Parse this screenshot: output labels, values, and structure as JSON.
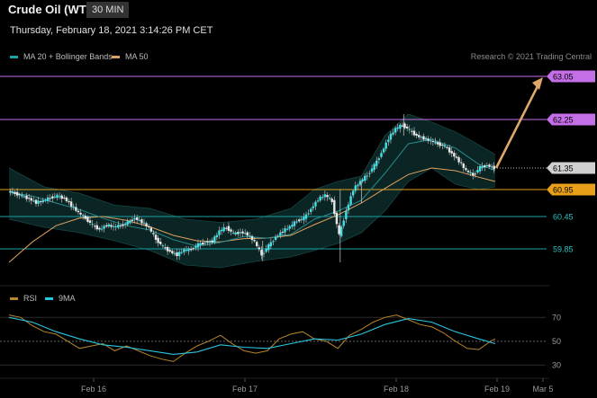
{
  "header": {
    "title": "Crude Oil (WTI)",
    "timeframe": "30 MIN"
  },
  "date_line": "Thursday, February 18, 2021 3:14:26 PM CET",
  "legend": {
    "ma20_label": "MA 20 + Bollinger Bands",
    "ma20_color": "#1aa3a3",
    "ma50_label": "MA 50",
    "ma50_color": "#e0a060"
  },
  "credit": "Research © 2021 Trading Central",
  "rsi_legend": {
    "rsi_label": "RSI",
    "rsi_color": "#b8862b",
    "ma_label": "9MA",
    "ma_color": "#29c6e0"
  },
  "chart_data": {
    "type": "line",
    "main": {
      "ylim": [
        59.5,
        63.3
      ],
      "levels": [
        {
          "value": 63.05,
          "label": "63.05",
          "color": "#c46ee8",
          "tag_fill": "#c46ee8",
          "tag_text": "#000"
        },
        {
          "value": 62.25,
          "label": "62.25",
          "color": "#c46ee8",
          "tag_fill": "#c46ee8",
          "tag_text": "#000"
        },
        {
          "value": 61.35,
          "label": "61.35",
          "color": "#bbbbbb",
          "tag_fill": "#d0d0d0",
          "tag_text": "#000",
          "dotted": true
        },
        {
          "value": 60.95,
          "label": "60.95",
          "color": "#e0a020",
          "tag_fill": "#e8a018",
          "tag_text": "#000"
        },
        {
          "value": 60.45,
          "label": "60.45",
          "color": "#1aa3a3",
          "tag_fill": "none",
          "tag_text": "#2ec0c0"
        },
        {
          "value": 59.85,
          "label": "59.85",
          "color": "#1aa3a3",
          "tag_fill": "none",
          "tag_text": "#2ec0c0"
        }
      ],
      "price": [
        [
          0,
          60.92
        ],
        [
          3,
          60.88
        ],
        [
          6,
          60.83
        ],
        [
          9,
          60.78
        ],
        [
          12,
          60.71
        ],
        [
          15,
          60.74
        ],
        [
          18,
          60.8
        ],
        [
          21,
          60.83
        ],
        [
          24,
          60.79
        ],
        [
          27,
          60.66
        ],
        [
          30,
          60.52
        ],
        [
          33,
          60.42
        ],
        [
          36,
          60.29
        ],
        [
          39,
          60.21
        ],
        [
          42,
          60.29
        ],
        [
          45,
          60.26
        ],
        [
          48,
          60.28
        ],
        [
          51,
          60.34
        ],
        [
          54,
          60.42
        ],
        [
          57,
          60.35
        ],
        [
          60,
          60.24
        ],
        [
          63,
          60.03
        ],
        [
          66,
          59.89
        ],
        [
          69,
          59.8
        ],
        [
          72,
          59.74
        ],
        [
          75,
          59.83
        ],
        [
          78,
          59.84
        ],
        [
          81,
          59.93
        ],
        [
          84,
          59.97
        ],
        [
          87,
          59.99
        ],
        [
          90,
          60.18
        ],
        [
          93,
          60.25
        ],
        [
          96,
          60.13
        ],
        [
          99,
          60.16
        ],
        [
          102,
          60.12
        ],
        [
          105,
          59.98
        ],
        [
          108,
          59.74
        ],
        [
          111,
          59.91
        ],
        [
          114,
          60.07
        ],
        [
          117,
          60.18
        ],
        [
          120,
          60.26
        ],
        [
          123,
          60.37
        ],
        [
          126,
          60.42
        ],
        [
          129,
          60.59
        ],
        [
          132,
          60.77
        ],
        [
          135,
          60.85
        ],
        [
          138,
          60.73
        ],
        [
          141,
          60.1
        ],
        [
          144,
          60.55
        ],
        [
          147,
          60.95
        ],
        [
          150,
          61.1
        ],
        [
          153,
          61.22
        ],
        [
          156,
          61.4
        ],
        [
          159,
          61.63
        ],
        [
          162,
          61.9
        ],
        [
          165,
          62.08
        ],
        [
          168,
          62.15
        ],
        [
          171,
          62.05
        ],
        [
          174,
          61.95
        ],
        [
          177,
          61.9
        ],
        [
          180,
          61.85
        ],
        [
          183,
          61.8
        ],
        [
          186,
          61.75
        ],
        [
          189,
          61.62
        ],
        [
          192,
          61.48
        ],
        [
          195,
          61.3
        ],
        [
          198,
          61.22
        ],
        [
          201,
          61.36
        ],
        [
          204,
          61.4
        ],
        [
          207,
          61.35
        ]
      ],
      "ma20": [
        [
          0,
          60.9
        ],
        [
          10,
          60.83
        ],
        [
          20,
          60.7
        ],
        [
          30,
          60.58
        ],
        [
          40,
          60.42
        ],
        [
          50,
          60.28
        ],
        [
          60,
          60.2
        ],
        [
          70,
          60.02
        ],
        [
          80,
          59.9
        ],
        [
          90,
          59.97
        ],
        [
          100,
          60.08
        ],
        [
          110,
          60.05
        ],
        [
          120,
          60.12
        ],
        [
          130,
          60.4
        ],
        [
          140,
          60.55
        ],
        [
          150,
          60.75
        ],
        [
          160,
          61.25
        ],
        [
          170,
          61.8
        ],
        [
          180,
          61.88
        ],
        [
          190,
          61.72
        ],
        [
          200,
          61.42
        ],
        [
          207,
          61.3
        ]
      ],
      "ma50": [
        [
          0,
          59.6
        ],
        [
          10,
          59.98
        ],
        [
          20,
          60.28
        ],
        [
          30,
          60.42
        ],
        [
          40,
          60.45
        ],
        [
          50,
          60.38
        ],
        [
          60,
          60.26
        ],
        [
          70,
          60.1
        ],
        [
          80,
          60.0
        ],
        [
          90,
          59.98
        ],
        [
          100,
          60.04
        ],
        [
          110,
          60.05
        ],
        [
          120,
          60.1
        ],
        [
          130,
          60.3
        ],
        [
          140,
          60.48
        ],
        [
          150,
          60.7
        ],
        [
          160,
          60.97
        ],
        [
          170,
          61.23
        ],
        [
          180,
          61.35
        ],
        [
          190,
          61.3
        ],
        [
          200,
          61.18
        ],
        [
          207,
          61.1
        ]
      ],
      "bands_upper": [
        [
          0,
          61.35
        ],
        [
          15,
          61.0
        ],
        [
          30,
          60.88
        ],
        [
          45,
          60.66
        ],
        [
          60,
          60.6
        ],
        [
          75,
          60.4
        ],
        [
          90,
          60.34
        ],
        [
          105,
          60.4
        ],
        [
          120,
          60.6
        ],
        [
          130,
          60.95
        ],
        [
          140,
          61.1
        ],
        [
          150,
          61.2
        ],
        [
          160,
          61.95
        ],
        [
          170,
          62.35
        ],
        [
          180,
          62.2
        ],
        [
          190,
          62.02
        ],
        [
          200,
          61.78
        ],
        [
          207,
          61.6
        ]
      ],
      "bands_lower": [
        [
          0,
          60.4
        ],
        [
          15,
          60.25
        ],
        [
          30,
          60.15
        ],
        [
          45,
          60.0
        ],
        [
          60,
          59.82
        ],
        [
          75,
          59.55
        ],
        [
          90,
          59.5
        ],
        [
          105,
          59.62
        ],
        [
          120,
          59.7
        ],
        [
          130,
          59.82
        ],
        [
          140,
          59.95
        ],
        [
          150,
          60.15
        ],
        [
          160,
          60.55
        ],
        [
          170,
          61.1
        ],
        [
          180,
          61.35
        ],
        [
          190,
          61.05
        ],
        [
          200,
          60.95
        ],
        [
          207,
          61.0
        ]
      ],
      "projection": [
        [
          207,
          61.35
        ],
        [
          226,
          63.05
        ]
      ]
    },
    "rsi": {
      "ylim": [
        22,
        80
      ],
      "levels": [
        70,
        50,
        30
      ],
      "rsi": [
        [
          0,
          72
        ],
        [
          5,
          70
        ],
        [
          10,
          63
        ],
        [
          15,
          58
        ],
        [
          20,
          56
        ],
        [
          25,
          50
        ],
        [
          30,
          44
        ],
        [
          35,
          46
        ],
        [
          40,
          48
        ],
        [
          45,
          42
        ],
        [
          50,
          46
        ],
        [
          55,
          42
        ],
        [
          60,
          38
        ],
        [
          65,
          35
        ],
        [
          70,
          33
        ],
        [
          75,
          40
        ],
        [
          80,
          46
        ],
        [
          85,
          50
        ],
        [
          90,
          55
        ],
        [
          95,
          48
        ],
        [
          100,
          42
        ],
        [
          105,
          40
        ],
        [
          110,
          42
        ],
        [
          115,
          52
        ],
        [
          120,
          56
        ],
        [
          125,
          58
        ],
        [
          130,
          52
        ],
        [
          135,
          50
        ],
        [
          140,
          44
        ],
        [
          145,
          55
        ],
        [
          150,
          60
        ],
        [
          155,
          66
        ],
        [
          160,
          70
        ],
        [
          165,
          72
        ],
        [
          170,
          68
        ],
        [
          175,
          64
        ],
        [
          180,
          62
        ],
        [
          185,
          57
        ],
        [
          190,
          50
        ],
        [
          195,
          44
        ],
        [
          200,
          43
        ],
        [
          205,
          50
        ],
        [
          207,
          52
        ]
      ],
      "ma9": [
        [
          0,
          70
        ],
        [
          10,
          66
        ],
        [
          20,
          58
        ],
        [
          30,
          52
        ],
        [
          40,
          47
        ],
        [
          50,
          45
        ],
        [
          60,
          42
        ],
        [
          70,
          39
        ],
        [
          80,
          41
        ],
        [
          90,
          47
        ],
        [
          100,
          45
        ],
        [
          110,
          44
        ],
        [
          120,
          48
        ],
        [
          130,
          52
        ],
        [
          140,
          51
        ],
        [
          150,
          56
        ],
        [
          160,
          64
        ],
        [
          170,
          69
        ],
        [
          180,
          66
        ],
        [
          190,
          58
        ],
        [
          200,
          52
        ],
        [
          207,
          48
        ]
      ]
    },
    "x_ticks": [
      "Feb 16",
      "Feb 17",
      "Feb 18",
      "Feb 19",
      "Mar 5"
    ],
    "rsi_ticks": [
      "70",
      "50",
      "30"
    ]
  }
}
